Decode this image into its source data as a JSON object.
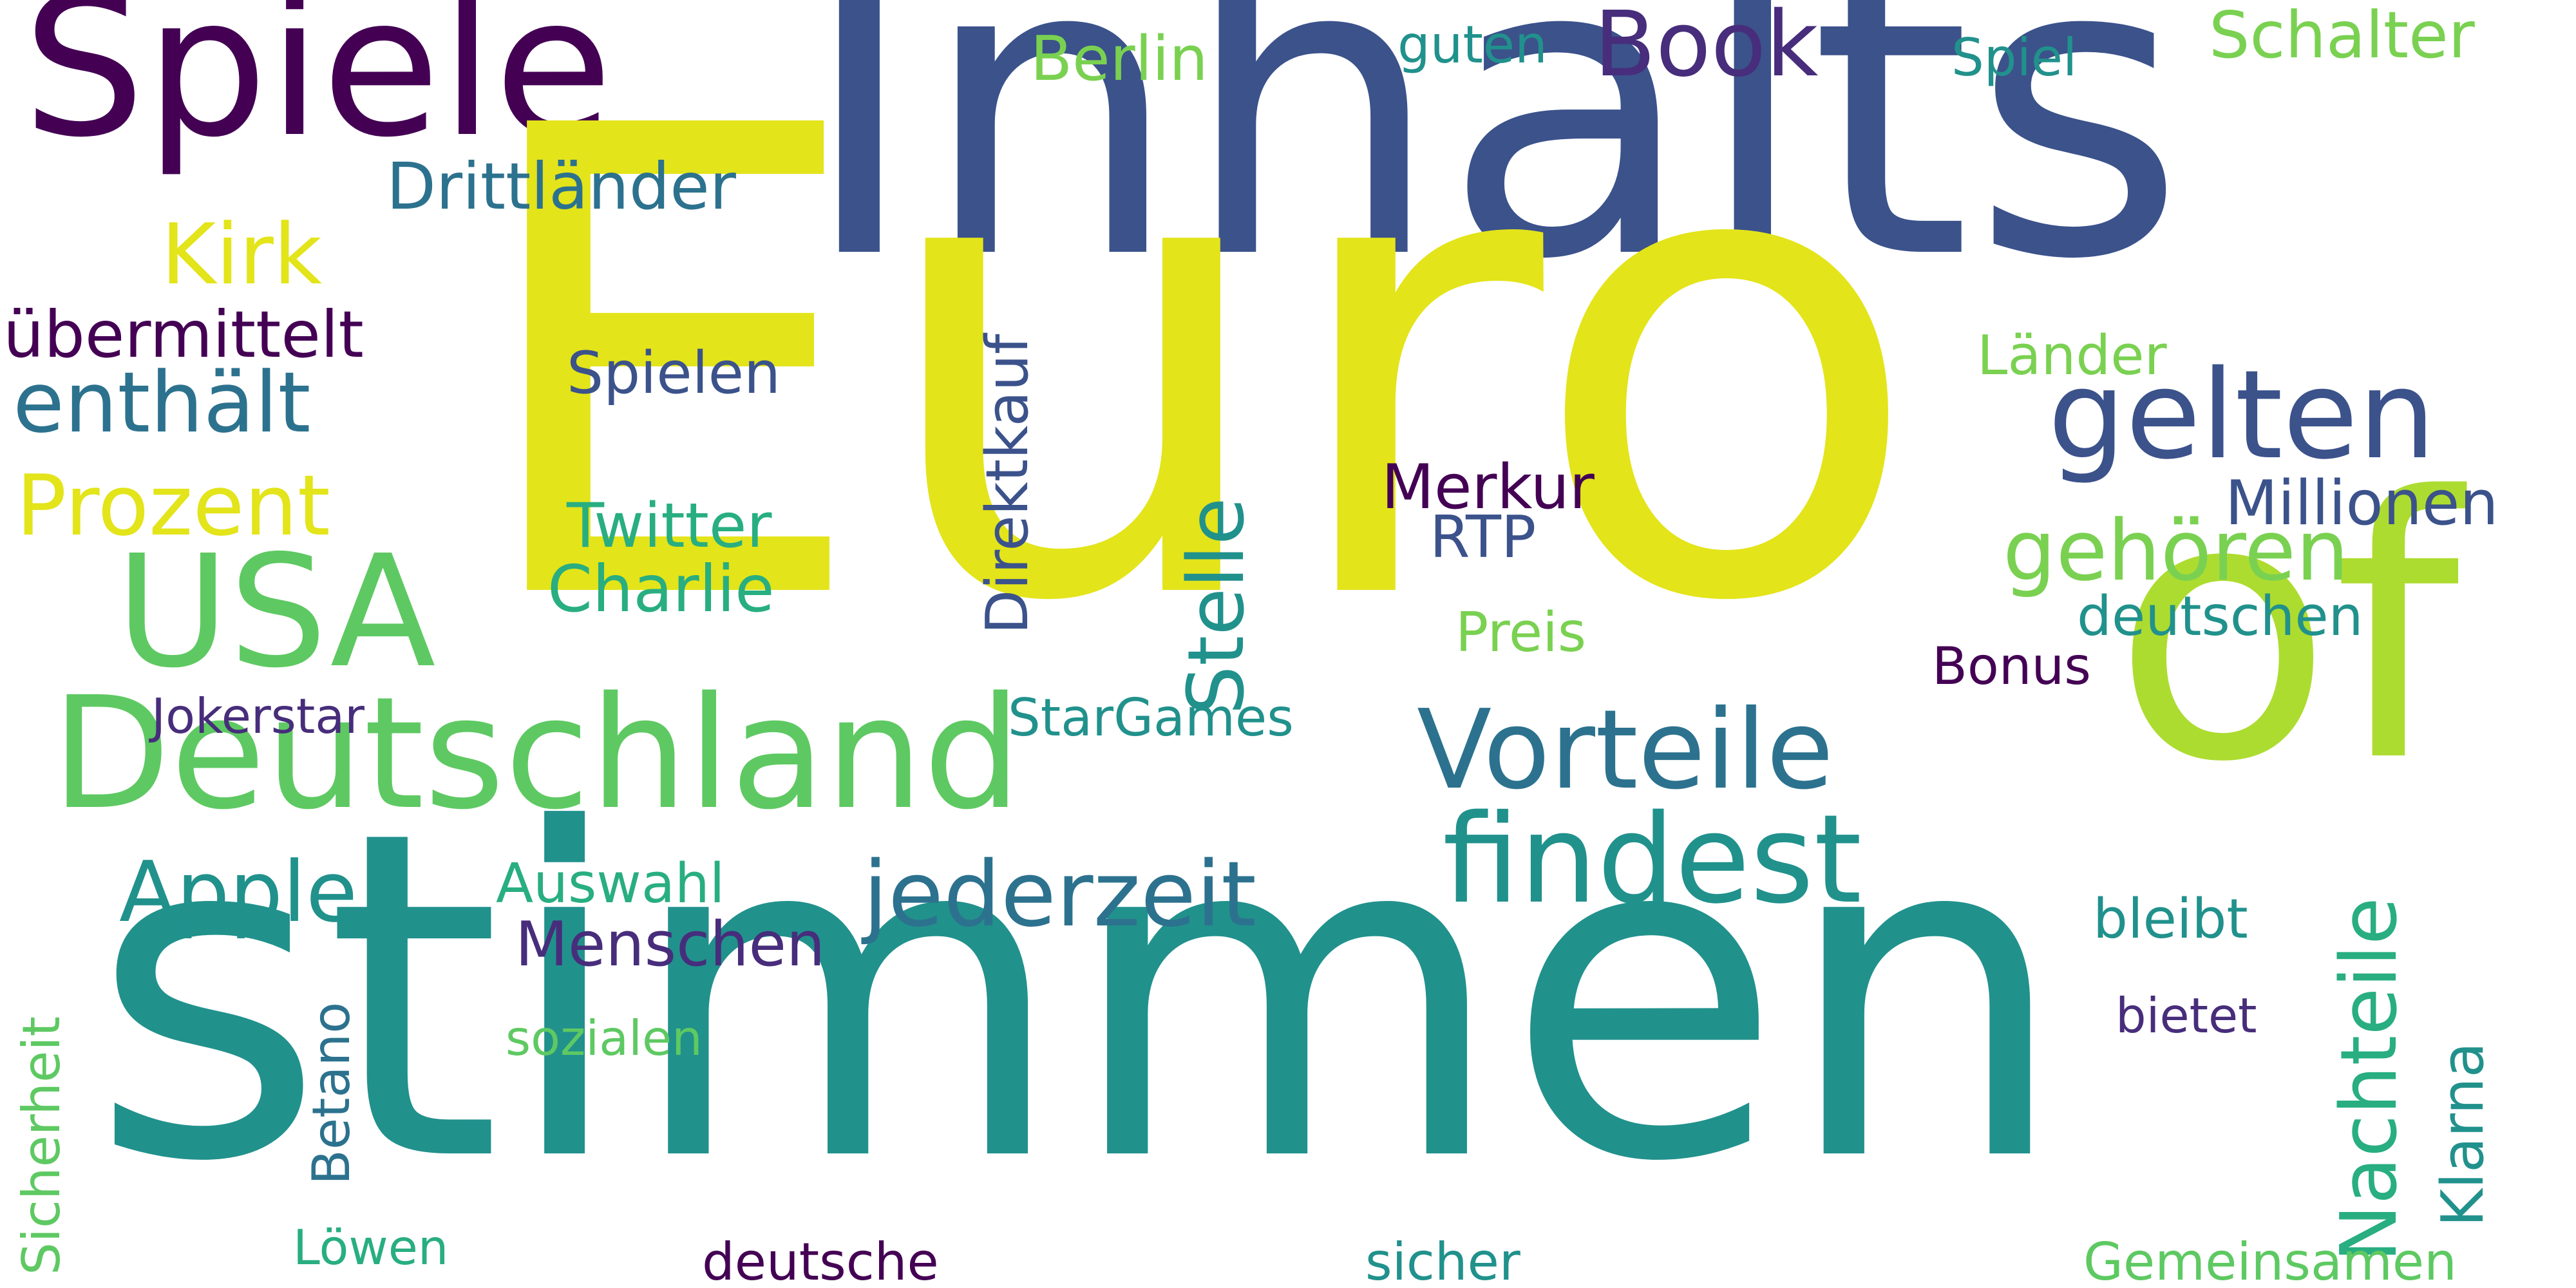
{
  "words": {
    "euro": "Euro",
    "inhalts": "Inhalts",
    "stimmen": "stimmen",
    "of": "of",
    "spiele": "Spiele",
    "deutschland": "Deutschland",
    "vorteile": "Vorteile",
    "findest": "findest",
    "usa": "USA",
    "gelten": "gelten",
    "jederzeit": "jederzeit",
    "book": "Book",
    "stelle": "Stelle",
    "nachteile": "Nachteile",
    "enthaelt": "enthält",
    "prozent": "Prozent",
    "apple": "Apple",
    "gehoeren": "gehören",
    "kirk": "Kirk",
    "direktkauf": "Direktkauf",
    "drittlaender": "Drittländer",
    "schalter": "Schalter",
    "berlin": "Berlin",
    "uebermittelt": "übermittelt",
    "charlie": "Charlie",
    "twitter": "Twitter",
    "millionen": "Millionen",
    "menschen": "Menschen",
    "merkur": "Merkur",
    "spielen": "Spielen",
    "laender": "Länder",
    "deutschen": "deutschen",
    "rtp": "RTP",
    "klarna": "Klarna",
    "startgames": "StarGames",
    "auswahl": "Auswahl",
    "bleibt": "bleibt",
    "bonus": "Bonus",
    "preis": "Preis",
    "spiel": "Spiel",
    "guten": "guten",
    "jokerstar": "Jokerstar",
    "sozialen": "sozialen",
    "sicherheit": "Sicherheit",
    "betano": "Betano",
    "bietet": "bietet",
    "gemeinsamen": "Gemeinsamen",
    "deutsche": "deutsche",
    "sicher": "sicher",
    "loewen": "Löwen"
  }
}
